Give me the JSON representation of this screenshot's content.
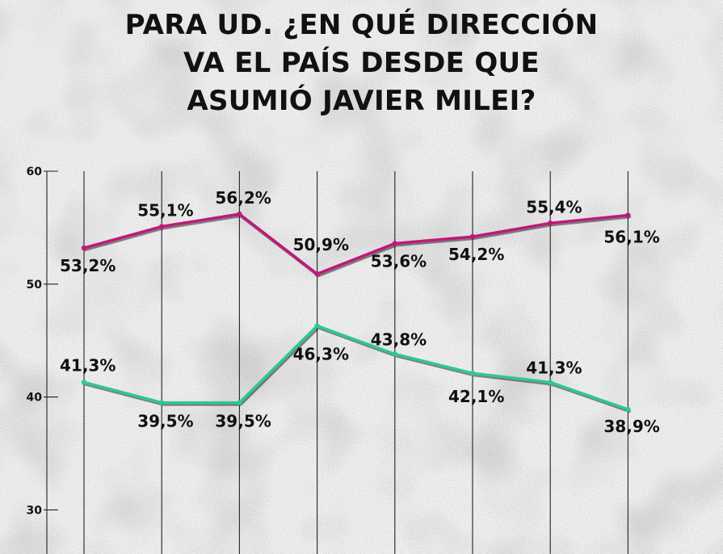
{
  "chart_data": {
    "type": "line",
    "title": [
      "PARA UD. ¿EN QUÉ DIRECCIÓN",
      "VA EL PAÍS DESDE QUE",
      "ASUMIÓ JAVIER MILEI?"
    ],
    "xlabel": "",
    "ylabel": "",
    "ylim": [
      30,
      60
    ],
    "yticks": [
      30,
      40,
      50,
      60
    ],
    "grid": "vertical",
    "x": [
      1,
      2,
      3,
      4,
      5,
      6,
      7,
      8
    ],
    "series": [
      {
        "values": [
          53.2,
          55.1,
          56.2,
          50.9,
          53.6,
          54.2,
          55.4,
          56.1
        ],
        "labels": [
          "53,2%",
          "55,1%",
          "56,2%",
          "50,9%",
          "53,6%",
          "54,2%",
          "55,4%",
          "56,1%"
        ],
        "color": "#c0187a"
      },
      {
        "values": [
          41.3,
          39.5,
          39.5,
          46.3,
          43.8,
          42.1,
          41.3,
          38.9
        ],
        "labels": [
          "41,3%",
          "39,5%",
          "39,5%",
          "46,3%",
          "43,8%",
          "42,1%",
          "41,3%",
          "38,9%"
        ],
        "color": "#2cc79b"
      }
    ]
  }
}
